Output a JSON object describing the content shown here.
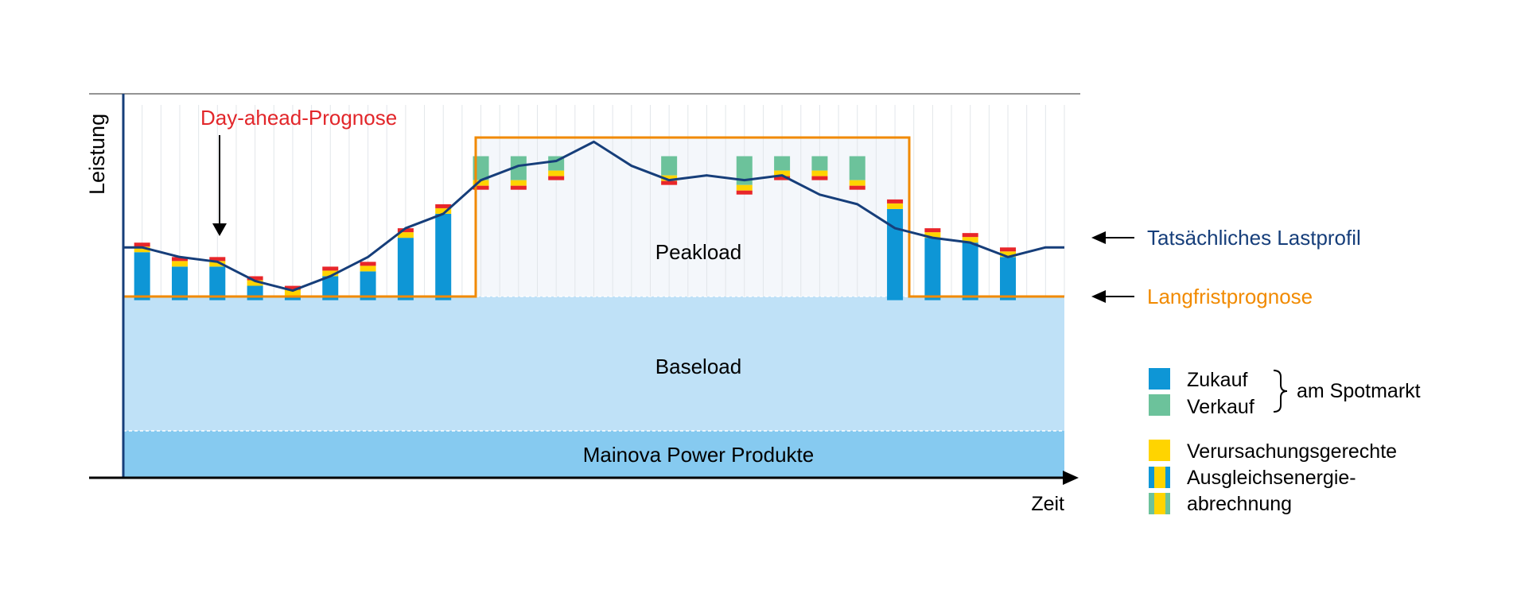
{
  "labels": {
    "y_axis": "Leistung",
    "x_axis": "Zeit",
    "day_ahead": "Day-ahead-Prognose",
    "peakload": "Peakload",
    "baseload": "Baseload",
    "mainova": "Mainova Power Produkte",
    "actual_profile": "Tatsächliches Lastprofil",
    "long_term_forecast": "Langfristprognose"
  },
  "legend": {
    "buy": "Zukauf",
    "sell": "Verkauf",
    "spot": "am Spotmarkt",
    "causal_line1": "Verursachungsgerechte",
    "causal_line2": "Ausgleichsenergie-",
    "causal_line3": "abrechnung"
  },
  "colors": {
    "buy": "#0e96d6",
    "sell": "#6cc29b",
    "balance_yellow": "#ffd400",
    "balance_red": "#e8262a",
    "actual_line": "#163e7a",
    "long_term": "#f18a00",
    "baseload": "#bfe1f7",
    "mainova": "#86caf0",
    "peak_fill": "#f4f7fb",
    "day_ahead_text": "#e2262a"
  },
  "chart_data": {
    "type": "area",
    "x": [
      0,
      1,
      2,
      3,
      4,
      5,
      6,
      7,
      8,
      9,
      10,
      11,
      12,
      13,
      14,
      15,
      16,
      17,
      18,
      19,
      20,
      21,
      22,
      23,
      24
    ],
    "series": [
      {
        "name": "Mainova Power Produkte",
        "values": [
          12,
          12,
          12,
          12,
          12,
          12,
          12,
          12,
          12,
          12,
          12,
          12,
          12,
          12,
          12,
          12,
          12,
          12,
          12,
          12,
          12,
          12,
          12,
          12,
          12
        ]
      },
      {
        "name": "Baseload",
        "values": [
          25,
          25,
          25,
          25,
          25,
          25,
          25,
          25,
          25,
          25,
          25,
          25,
          25,
          25,
          25,
          25,
          25,
          25,
          25,
          25,
          25,
          25,
          25,
          25,
          25
        ]
      },
      {
        "name": "Peakload",
        "values": [
          0,
          0,
          0,
          0,
          0,
          0,
          0,
          0,
          0,
          30,
          30,
          30,
          30,
          30,
          30,
          30,
          30,
          30,
          30,
          30,
          0,
          0,
          0,
          0,
          0
        ]
      },
      {
        "name": "Langfristprognose",
        "values": [
          37,
          37,
          37,
          37,
          37,
          37,
          37,
          37,
          37,
          67,
          67,
          67,
          67,
          67,
          67,
          67,
          67,
          67,
          67,
          67,
          37,
          37,
          37,
          37,
          37
        ]
      },
      {
        "name": "Tatsächliches Lastprofil",
        "values": [
          48,
          46,
          45,
          41,
          39,
          42,
          46,
          52,
          55,
          62,
          65,
          66,
          70,
          65,
          62,
          63,
          62,
          63,
          59,
          57,
          52,
          50,
          49,
          46,
          48
        ]
      },
      {
        "name": "Zukauf",
        "values": [
          10,
          7,
          7,
          3,
          1,
          5,
          6,
          13,
          18,
          0,
          0,
          0,
          0,
          0,
          0,
          0,
          0,
          0,
          0,
          0,
          19,
          13,
          12,
          9,
          0
        ]
      },
      {
        "name": "Verkauf",
        "values": [
          0,
          0,
          0,
          0,
          0,
          0,
          0,
          0,
          0,
          5,
          5,
          3,
          0,
          0,
          4,
          0,
          6,
          3,
          3,
          5,
          0,
          0,
          0,
          0,
          0
        ]
      }
    ]
  }
}
